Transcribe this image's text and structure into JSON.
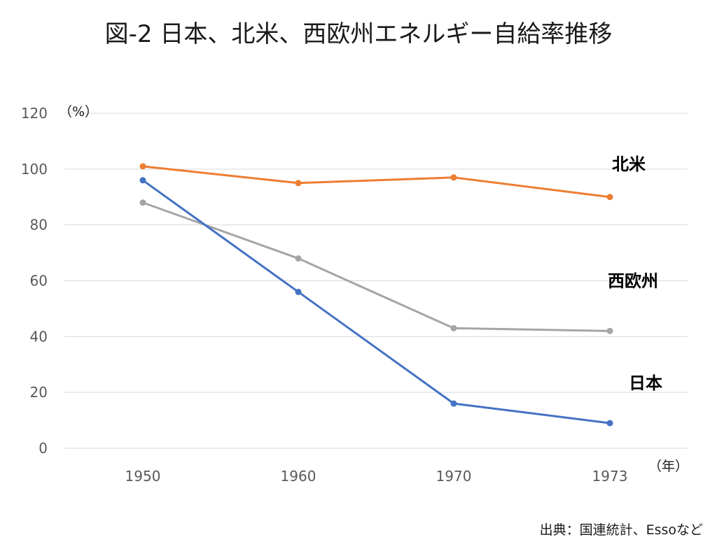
{
  "chart_data": {
    "type": "line",
    "title": "図-2 日本、北米、西欧州エネルギー自給率推移",
    "y_unit_label": "（%）",
    "x_unit_label": "（年）",
    "source_note": "出典：国連統計、Essoなど",
    "categories": [
      "1950",
      "1960",
      "1970",
      "1973"
    ],
    "ylim": [
      0,
      120
    ],
    "yticks": [
      0,
      20,
      40,
      60,
      80,
      100,
      120
    ],
    "grid": true,
    "series": [
      {
        "name": "北米",
        "color": "#ED7D31",
        "values": [
          101,
          95,
          97,
          90
        ]
      },
      {
        "name": "西欧州",
        "color": "#A5A5A5",
        "values": [
          88,
          68,
          43,
          42
        ]
      },
      {
        "name": "日本",
        "color": "#4472C4",
        "values": [
          96,
          56,
          16,
          9
        ]
      }
    ]
  }
}
